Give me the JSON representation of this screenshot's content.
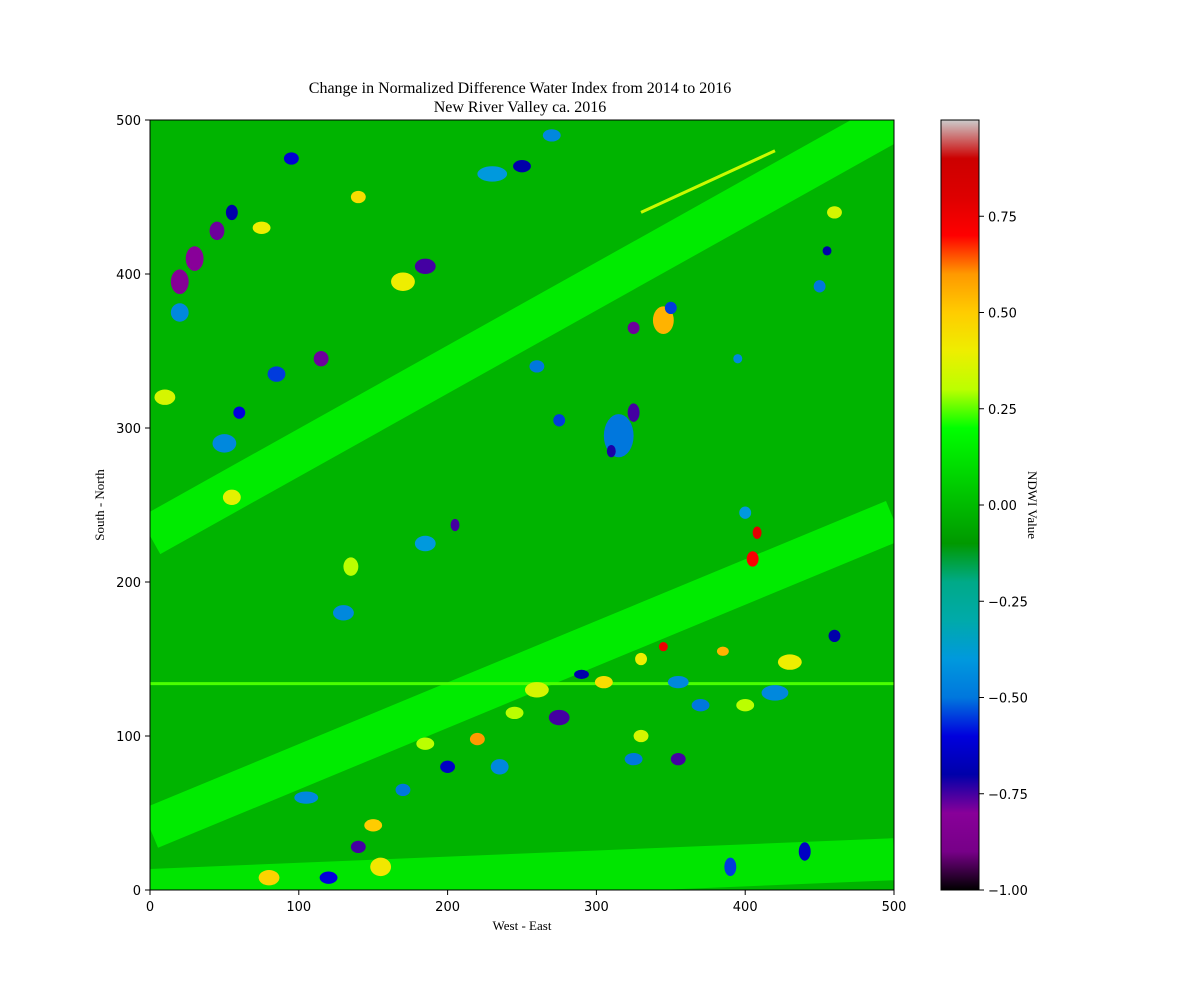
{
  "chart_data": [
    {
      "type": "heatmap",
      "title": "Change in Normalized Difference Water Index from 2014 to 2016",
      "subtitle": "New River Valley ca. 2016",
      "xlabel": "West - East",
      "ylabel": "South - North",
      "xlim": [
        0,
        500
      ],
      "ylim": [
        0,
        500
      ],
      "x_ticks": [
        0,
        100,
        200,
        300,
        400,
        500
      ],
      "y_ticks": [
        0,
        100,
        200,
        300,
        400,
        500
      ],
      "grid": false,
      "colormap": "nipy_spectral",
      "colorbar": {
        "label": "NDWI Value",
        "range": [
          -1.0,
          1.0
        ],
        "ticks": [
          -1.0,
          -0.75,
          -0.5,
          -0.25,
          0.0,
          0.25,
          0.5,
          0.75
        ],
        "tick_labels": [
          "−1.00",
          "−0.75",
          "−0.50",
          "−0.25",
          "0.00",
          "0.25",
          "0.50",
          "0.75"
        ]
      },
      "bands": [
        {
          "x1": 0,
          "y1": 230,
          "x2": 500,
          "y2": 500,
          "value": 0.17
        },
        {
          "x1": 0,
          "y1": 40,
          "x2": 500,
          "y2": 240,
          "value": 0.17
        },
        {
          "x1": 0,
          "y1": 0,
          "x2": 500,
          "y2": 20,
          "value": 0.15
        }
      ],
      "linear_features": [
        {
          "x1": 0,
          "y1": 134,
          "x2": 500,
          "y2": 134,
          "value": 0.24
        },
        {
          "x1": 330,
          "y1": 440,
          "x2": 420,
          "y2": 480,
          "value": 0.33
        }
      ],
      "patches": [
        {
          "x": 30,
          "y": 410,
          "rx": 6,
          "ry": 8,
          "value": -0.8
        },
        {
          "x": 20,
          "y": 395,
          "rx": 6,
          "ry": 8,
          "value": -0.82
        },
        {
          "x": 45,
          "y": 428,
          "rx": 5,
          "ry": 6,
          "value": -0.78
        },
        {
          "x": 55,
          "y": 440,
          "rx": 4,
          "ry": 5,
          "value": -0.7
        },
        {
          "x": 95,
          "y": 475,
          "rx": 5,
          "ry": 4,
          "value": -0.62
        },
        {
          "x": 140,
          "y": 450,
          "rx": 5,
          "ry": 4,
          "value": 0.45
        },
        {
          "x": 170,
          "y": 395,
          "rx": 8,
          "ry": 6,
          "value": 0.4
        },
        {
          "x": 185,
          "y": 405,
          "rx": 7,
          "ry": 5,
          "value": -0.75
        },
        {
          "x": 115,
          "y": 345,
          "rx": 5,
          "ry": 5,
          "value": -0.78
        },
        {
          "x": 85,
          "y": 335,
          "rx": 6,
          "ry": 5,
          "value": -0.55
        },
        {
          "x": 10,
          "y": 320,
          "rx": 7,
          "ry": 5,
          "value": 0.35
        },
        {
          "x": 50,
          "y": 290,
          "rx": 8,
          "ry": 6,
          "value": -0.45
        },
        {
          "x": 60,
          "y": 310,
          "rx": 4,
          "ry": 4,
          "value": -0.6
        },
        {
          "x": 230,
          "y": 465,
          "rx": 10,
          "ry": 5,
          "value": -0.4
        },
        {
          "x": 250,
          "y": 470,
          "rx": 6,
          "ry": 4,
          "value": -0.7
        },
        {
          "x": 270,
          "y": 490,
          "rx": 6,
          "ry": 4,
          "value": -0.45
        },
        {
          "x": 345,
          "y": 370,
          "rx": 7,
          "ry": 9,
          "value": 0.55
        },
        {
          "x": 325,
          "y": 365,
          "rx": 4,
          "ry": 4,
          "value": -0.78
        },
        {
          "x": 350,
          "y": 378,
          "rx": 4,
          "ry": 4,
          "value": -0.55
        },
        {
          "x": 315,
          "y": 295,
          "rx": 10,
          "ry": 14,
          "value": -0.5
        },
        {
          "x": 325,
          "y": 310,
          "rx": 4,
          "ry": 6,
          "value": -0.75
        },
        {
          "x": 310,
          "y": 285,
          "rx": 3,
          "ry": 4,
          "value": -0.72
        },
        {
          "x": 275,
          "y": 305,
          "rx": 4,
          "ry": 4,
          "value": -0.55
        },
        {
          "x": 260,
          "y": 340,
          "rx": 5,
          "ry": 4,
          "value": -0.5
        },
        {
          "x": 205,
          "y": 237,
          "rx": 3,
          "ry": 4,
          "value": -0.75
        },
        {
          "x": 185,
          "y": 225,
          "rx": 7,
          "ry": 5,
          "value": -0.4
        },
        {
          "x": 130,
          "y": 180,
          "rx": 7,
          "ry": 5,
          "value": -0.45
        },
        {
          "x": 135,
          "y": 210,
          "rx": 5,
          "ry": 6,
          "value": 0.3
        },
        {
          "x": 405,
          "y": 215,
          "rx": 4,
          "ry": 5,
          "value": 0.72
        },
        {
          "x": 408,
          "y": 232,
          "rx": 3,
          "ry": 4,
          "value": 0.78
        },
        {
          "x": 400,
          "y": 245,
          "rx": 4,
          "ry": 4,
          "value": -0.4
        },
        {
          "x": 430,
          "y": 148,
          "rx": 8,
          "ry": 5,
          "value": 0.4
        },
        {
          "x": 420,
          "y": 128,
          "rx": 9,
          "ry": 5,
          "value": -0.45
        },
        {
          "x": 385,
          "y": 155,
          "rx": 4,
          "ry": 3,
          "value": 0.55
        },
        {
          "x": 460,
          "y": 165,
          "rx": 4,
          "ry": 4,
          "value": -0.7
        },
        {
          "x": 400,
          "y": 120,
          "rx": 6,
          "ry": 4,
          "value": 0.3
        },
        {
          "x": 370,
          "y": 120,
          "rx": 6,
          "ry": 4,
          "value": -0.5
        },
        {
          "x": 355,
          "y": 135,
          "rx": 7,
          "ry": 4,
          "value": -0.45
        },
        {
          "x": 330,
          "y": 150,
          "rx": 4,
          "ry": 4,
          "value": 0.4
        },
        {
          "x": 345,
          "y": 158,
          "rx": 3,
          "ry": 3,
          "value": 0.75
        },
        {
          "x": 305,
          "y": 135,
          "rx": 6,
          "ry": 4,
          "value": 0.45
        },
        {
          "x": 290,
          "y": 140,
          "rx": 5,
          "ry": 3,
          "value": -0.7
        },
        {
          "x": 260,
          "y": 130,
          "rx": 8,
          "ry": 5,
          "value": 0.35
        },
        {
          "x": 275,
          "y": 112,
          "rx": 7,
          "ry": 5,
          "value": -0.75
        },
        {
          "x": 245,
          "y": 115,
          "rx": 6,
          "ry": 4,
          "value": 0.3
        },
        {
          "x": 220,
          "y": 98,
          "rx": 5,
          "ry": 4,
          "value": 0.6
        },
        {
          "x": 235,
          "y": 80,
          "rx": 6,
          "ry": 5,
          "value": -0.45
        },
        {
          "x": 200,
          "y": 80,
          "rx": 5,
          "ry": 4,
          "value": -0.65
        },
        {
          "x": 185,
          "y": 95,
          "rx": 6,
          "ry": 4,
          "value": 0.3
        },
        {
          "x": 170,
          "y": 65,
          "rx": 5,
          "ry": 4,
          "value": -0.5
        },
        {
          "x": 150,
          "y": 42,
          "rx": 6,
          "ry": 4,
          "value": 0.5
        },
        {
          "x": 140,
          "y": 28,
          "rx": 5,
          "ry": 4,
          "value": -0.75
        },
        {
          "x": 155,
          "y": 15,
          "rx": 7,
          "ry": 6,
          "value": 0.42
        },
        {
          "x": 120,
          "y": 8,
          "rx": 6,
          "ry": 4,
          "value": -0.6
        },
        {
          "x": 80,
          "y": 8,
          "rx": 7,
          "ry": 5,
          "value": 0.48
        },
        {
          "x": 105,
          "y": 60,
          "rx": 8,
          "ry": 4,
          "value": -0.45
        },
        {
          "x": 325,
          "y": 85,
          "rx": 6,
          "ry": 4,
          "value": -0.5
        },
        {
          "x": 355,
          "y": 85,
          "rx": 5,
          "ry": 4,
          "value": -0.75
        },
        {
          "x": 330,
          "y": 100,
          "rx": 5,
          "ry": 4,
          "value": 0.35
        },
        {
          "x": 440,
          "y": 25,
          "rx": 4,
          "ry": 6,
          "value": -0.65
        },
        {
          "x": 390,
          "y": 15,
          "rx": 4,
          "ry": 6,
          "value": -0.55
        },
        {
          "x": 460,
          "y": 440,
          "rx": 5,
          "ry": 4,
          "value": 0.35
        },
        {
          "x": 450,
          "y": 392,
          "rx": 4,
          "ry": 4,
          "value": -0.5
        },
        {
          "x": 395,
          "y": 345,
          "rx": 3,
          "ry": 3,
          "value": -0.45
        },
        {
          "x": 455,
          "y": 415,
          "rx": 3,
          "ry": 3,
          "value": -0.7
        },
        {
          "x": 55,
          "y": 255,
          "rx": 6,
          "ry": 5,
          "value": 0.38
        },
        {
          "x": 20,
          "y": 375,
          "rx": 6,
          "ry": 6,
          "value": -0.45
        },
        {
          "x": 75,
          "y": 430,
          "rx": 6,
          "ry": 4,
          "value": 0.4
        }
      ]
    }
  ]
}
